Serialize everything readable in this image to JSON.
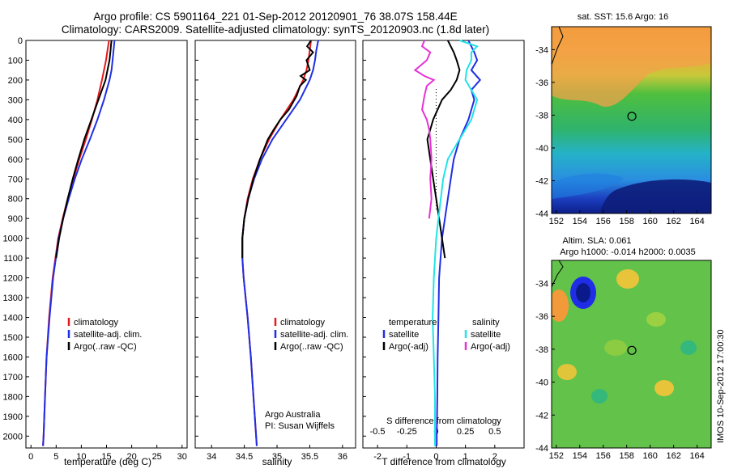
{
  "title_line1": "Argo profile: CS 5901164_221 01-Sep-2012 20120901_76 38.07S 158.44E",
  "title_line2": "Climatology: CARS2009. Satellite-adjusted climatology: synTS_20120903.nc (1.8d later)",
  "colors": {
    "climatology": "#e41a1c",
    "satellite": "#1f2ee6",
    "argo": "#000000",
    "salinity_satellite": "#22e3e6",
    "salinity_argo": "#e633d6"
  },
  "chart_data": [
    {
      "type": "line",
      "xlabel": "temperature (deg C)",
      "xlim": [
        -1,
        31
      ],
      "xticks": [
        0,
        5,
        10,
        15,
        20,
        25,
        30
      ],
      "ylim": [
        2060,
        0
      ],
      "yticks": [
        0,
        100,
        200,
        300,
        400,
        500,
        600,
        700,
        800,
        900,
        1000,
        1100,
        1200,
        1300,
        1400,
        1500,
        1600,
        1700,
        1800,
        1900,
        2000
      ],
      "legend": [
        "climatology",
        "satellite-adj. clim.",
        "Argo(..raw -QC)"
      ],
      "series": [
        {
          "name": "climatology",
          "color": "#e41a1c",
          "depth": [
            0,
            50,
            100,
            150,
            200,
            300,
            400,
            500,
            600,
            700,
            800,
            900,
            1000,
            1200,
            1400,
            1600,
            1800,
            2000,
            2050
          ],
          "values": [
            15.5,
            15.2,
            14.9,
            14.5,
            14.1,
            13.2,
            12.1,
            10.9,
            9.6,
            8.4,
            7.3,
            6.3,
            5.4,
            4.3,
            3.6,
            3.1,
            2.8,
            2.5,
            2.4
          ]
        },
        {
          "name": "satellite-adj. clim.",
          "color": "#1f2ee6",
          "depth": [
            0,
            50,
            100,
            150,
            200,
            300,
            400,
            500,
            600,
            700,
            800,
            900,
            1000,
            1200,
            1400,
            1600,
            1800,
            2000,
            2050
          ],
          "values": [
            16.6,
            16.4,
            16.2,
            16.0,
            15.6,
            14.5,
            13.2,
            11.7,
            10.1,
            8.7,
            7.5,
            6.4,
            5.5,
            4.4,
            3.7,
            3.1,
            2.8,
            2.5,
            2.4
          ]
        },
        {
          "name": "Argo(..raw -QC)",
          "color": "#000000",
          "depth": [
            0,
            20,
            50,
            100,
            150,
            200,
            250,
            300,
            400,
            500,
            600,
            700,
            800,
            900,
            1000,
            1100
          ],
          "values": [
            16.0,
            15.9,
            15.8,
            15.6,
            15.2,
            14.8,
            14.1,
            13.4,
            12.0,
            10.6,
            9.4,
            8.3,
            7.3,
            6.4,
            5.6,
            5.0
          ]
        }
      ]
    },
    {
      "type": "line",
      "xlabel": "salinity",
      "xlim": [
        33.75,
        36.2
      ],
      "xticks": [
        34,
        34.5,
        35,
        35.5,
        36
      ],
      "ylim": [
        2060,
        0
      ],
      "legend": [
        "climatology",
        "satellite-adj. clim.",
        "Argo(..raw -QC)"
      ],
      "annotation": [
        "Argo Australia",
        "PI: Susan Wijffels"
      ],
      "series": [
        {
          "name": "climatology",
          "color": "#e41a1c",
          "depth": [
            0,
            50,
            100,
            150,
            200,
            300,
            400,
            500,
            600,
            700,
            800,
            900,
            1000,
            1100,
            1200,
            1400,
            1600,
            1800,
            2000,
            2050
          ],
          "values": [
            35.52,
            35.5,
            35.48,
            35.45,
            35.4,
            35.25,
            35.05,
            34.88,
            34.74,
            34.63,
            34.55,
            34.5,
            34.47,
            34.47,
            34.49,
            34.55,
            34.6,
            34.64,
            34.68,
            34.69
          ]
        },
        {
          "name": "satellite-adj. clim.",
          "color": "#1f2ee6",
          "depth": [
            0,
            50,
            100,
            150,
            200,
            300,
            400,
            500,
            600,
            700,
            800,
            900,
            1000,
            1100,
            1200,
            1400,
            1600,
            1800,
            2000,
            2050
          ],
          "values": [
            35.63,
            35.6,
            35.58,
            35.55,
            35.5,
            35.35,
            35.14,
            34.93,
            34.77,
            34.65,
            34.56,
            34.5,
            34.47,
            34.47,
            34.49,
            34.55,
            34.6,
            34.64,
            34.68,
            34.69
          ]
        },
        {
          "name": "Argo(..raw -QC)",
          "color": "#000000",
          "depth": [
            0,
            30,
            60,
            100,
            150,
            180,
            200,
            230,
            280,
            350,
            400,
            450,
            500,
            600,
            700,
            800,
            900,
            1000,
            1100
          ],
          "values": [
            35.52,
            35.46,
            35.55,
            35.45,
            35.5,
            35.36,
            35.44,
            35.35,
            35.3,
            35.18,
            35.05,
            34.95,
            34.86,
            34.74,
            34.64,
            34.56,
            34.5,
            34.47,
            34.47
          ]
        }
      ]
    },
    {
      "type": "line",
      "xlabel": "T difference from climatology",
      "xlabel_top": "S difference from climatology",
      "xlim": [
        -2.5,
        3
      ],
      "xticks": [
        -2,
        -1,
        0,
        1,
        2
      ],
      "xticks_top": [
        -0.5,
        -0.25,
        0,
        0.25,
        0.5
      ],
      "ylim": [
        2060,
        0
      ],
      "legend_temperature": [
        "temperature",
        "satellite",
        "Argo(-adj)"
      ],
      "legend_salinity": [
        "salinity",
        "satellite",
        "Argo(-adj)"
      ],
      "series": [
        {
          "name": "temperature satellite",
          "color": "#1f2ee6",
          "depth": [
            0,
            30,
            60,
            100,
            150,
            200,
            250,
            300,
            400,
            500,
            600,
            700,
            800,
            900,
            1000,
            1100,
            1200,
            1400,
            1600,
            1800,
            2000,
            2050
          ],
          "values": [
            1.1,
            1.2,
            1.3,
            1.4,
            1.2,
            1.5,
            1.2,
            1.3,
            1.1,
            0.8,
            0.6,
            0.5,
            0.4,
            0.3,
            0.2,
            0.15,
            0.1,
            0.08,
            0.05,
            0.04,
            0.02,
            0.02
          ]
        },
        {
          "name": "temperature Argo",
          "color": "#000000",
          "depth": [
            0,
            30,
            60,
            100,
            150,
            200,
            250,
            300,
            400,
            500,
            600,
            700,
            800,
            900,
            1000,
            1100
          ],
          "values": [
            0.4,
            0.5,
            0.6,
            0.7,
            0.8,
            0.7,
            0.5,
            0.2,
            -0.1,
            -0.3,
            -0.2,
            -0.1,
            0.0,
            0.1,
            0.2,
            0.3
          ]
        },
        {
          "name": "salinity satellite",
          "color": "#22e3e6",
          "depth": [
            0,
            30,
            60,
            100,
            150,
            200,
            250,
            300,
            400,
            500,
            600,
            700,
            800,
            900,
            1000,
            1200,
            1400,
            1600,
            1800,
            2000,
            2050
          ],
          "values": [
            0.2,
            0.35,
            0.3,
            0.3,
            0.26,
            0.25,
            0.3,
            0.35,
            0.3,
            0.2,
            0.1,
            0.06,
            0.04,
            0.02,
            0.0,
            -0.02,
            -0.03,
            -0.02,
            -0.01,
            -0.01,
            -0.01
          ]
        },
        {
          "name": "salinity Argo",
          "color": "#e633d6",
          "depth": [
            0,
            30,
            60,
            100,
            150,
            180,
            200,
            230,
            280,
            350,
            400,
            450,
            500,
            600,
            700,
            800,
            900
          ],
          "values": [
            -0.1,
            -0.12,
            -0.05,
            -0.08,
            -0.18,
            -0.1,
            -0.02,
            -0.08,
            -0.1,
            -0.12,
            -0.08,
            -0.06,
            -0.05,
            -0.04,
            -0.05,
            -0.04,
            -0.06
          ]
        }
      ]
    },
    {
      "type": "heatmap",
      "title": "sat. SST: 15.6  Argo: 16",
      "xticks": [
        152,
        154,
        156,
        158,
        160,
        162,
        164
      ],
      "yticks": [
        -34,
        -36,
        -38,
        -40,
        -42,
        -44
      ],
      "profile_marker": {
        "lon": 158.44,
        "lat": -38.07
      }
    },
    {
      "type": "heatmap",
      "title_line1": "Altim. SLA: 0.061",
      "title_line2": "Argo h1000: -0.014 h2000: 0.0035",
      "xticks": [
        152,
        154,
        156,
        158,
        160,
        162,
        164
      ],
      "yticks": [
        -34,
        -36,
        -38,
        -40,
        -42,
        -44
      ],
      "profile_marker": {
        "lon": 158.44,
        "lat": -38.07
      }
    }
  ],
  "credit": "IMOS 10-Sep-2012 17:00:30"
}
